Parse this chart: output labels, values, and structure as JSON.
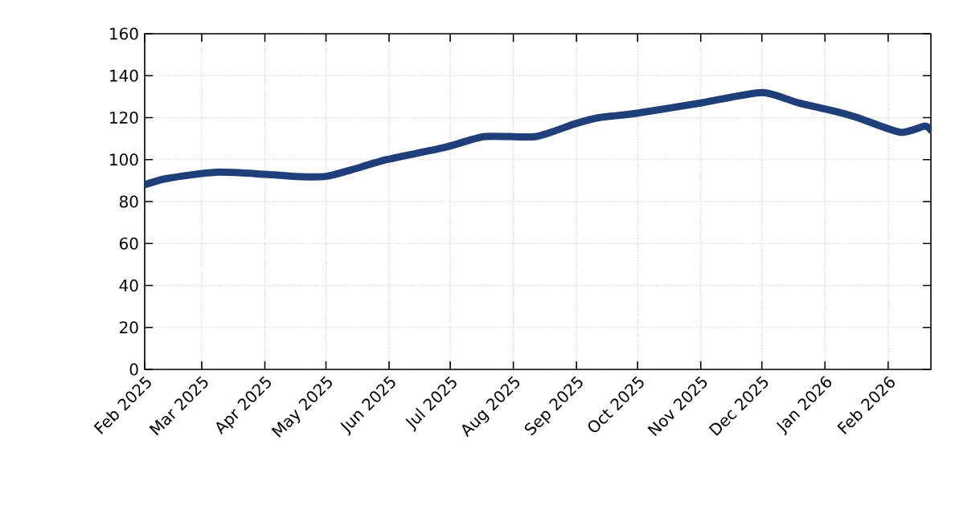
{
  "chart_data": {
    "type": "line",
    "x": [
      "2025-02-01",
      "2025-02-12",
      "2025-03-08",
      "2025-04-01",
      "2025-04-16",
      "2025-05-01",
      "2025-05-13",
      "2025-05-31",
      "2025-06-29",
      "2025-07-18",
      "2025-08-12",
      "2025-08-31",
      "2025-09-12",
      "2025-09-30",
      "2025-11-01",
      "2025-12-01",
      "2025-12-19",
      "2026-01-06",
      "2026-01-17",
      "2026-02-07",
      "2026-02-19",
      "2026-02-22"
    ],
    "series": [
      {
        "color": "#1f3f7a",
        "values": [
          88,
          91,
          94,
          93,
          92,
          92,
          95,
          100,
          106,
          111,
          111,
          117,
          120,
          122,
          127,
          132,
          127,
          123,
          120,
          113,
          116,
          114
        ]
      }
    ],
    "xlim": [
      "2025-02-01",
      "2026-02-22"
    ],
    "xticks": [
      {
        "value": "2025-02-01",
        "label": "Feb 2025"
      },
      {
        "value": "2025-03-01",
        "label": "Mar 2025"
      },
      {
        "value": "2025-04-01",
        "label": "Apr 2025"
      },
      {
        "value": "2025-05-01",
        "label": "May 2025"
      },
      {
        "value": "2025-06-01",
        "label": "Jun 2025"
      },
      {
        "value": "2025-07-01",
        "label": "Jul 2025"
      },
      {
        "value": "2025-08-01",
        "label": "Aug 2025"
      },
      {
        "value": "2025-09-01",
        "label": "Sep 2025"
      },
      {
        "value": "2025-10-01",
        "label": "Oct 2025"
      },
      {
        "value": "2025-11-01",
        "label": "Nov 2025"
      },
      {
        "value": "2025-12-01",
        "label": "Dec 2025"
      },
      {
        "value": "2026-01-01",
        "label": "Jan 2026"
      },
      {
        "value": "2026-02-01",
        "label": "Feb 2026"
      }
    ],
    "ylim": [
      0,
      160
    ],
    "yticks": [
      0,
      20,
      40,
      60,
      80,
      100,
      120,
      140,
      160
    ],
    "grid": true,
    "marker": "none",
    "line_style": "solid"
  }
}
